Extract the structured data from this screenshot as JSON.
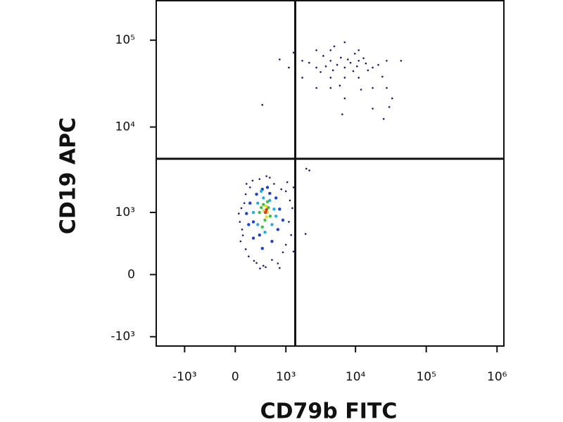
{
  "chart_data": {
    "type": "scatter",
    "x_label": "CD79b FITC",
    "y_label": "CD19 APC",
    "scale": "biexponential",
    "xlim": [
      -2600,
      1250000
    ],
    "ylim": [
      -1300,
      285000
    ],
    "xticks": [
      {
        "value": -1000,
        "label": "-10³"
      },
      0,
      {
        "value": 1000,
        "label": "10³"
      },
      {
        "value": 10000,
        "label": "10⁴"
      },
      {
        "value": 100000,
        "label": "10⁵"
      },
      {
        "value": 1000000,
        "label": "10⁶"
      }
    ],
    "yticks": [
      {
        "value": -1000,
        "label": "-10³"
      },
      0,
      {
        "value": 1000,
        "label": "10³"
      },
      {
        "value": 10000,
        "label": "10⁴"
      },
      {
        "value": 100000,
        "label": "10⁵"
      }
    ],
    "quadrant_gate": {
      "x": 1380,
      "y": 4300
    },
    "series": [
      {
        "color": "#1a1a6e",
        "x": [
          1750,
          2790,
          4440,
          7040,
          11100,
          4440,
          2790,
          7040,
          11100,
          17500,
          27600,
          17500,
          4440,
          2790,
          1750,
          1110,
          7040,
          11100,
          27600,
          44000,
          17500,
          7040,
          4440,
          5500,
          6200,
          8500,
          9300,
          3500,
          3200,
          13000,
          15000,
          21000,
          24000,
          2200,
          5000,
          9800,
          6000,
          12000,
          30000,
          33000,
          25000,
          6500,
          1300,
          800,
          400,
          3800,
          4800,
          7800,
          10500,
          14000
        ],
        "values": [
          58000,
          48400,
          58000,
          48400,
          58000,
          76700,
          76700,
          37000,
          37000,
          48400,
          58000,
          28200,
          37000,
          28200,
          37000,
          48400,
          94600,
          76700,
          28200,
          58000,
          16300,
          21400,
          28200,
          52000,
          63000,
          55000,
          44000,
          66000,
          43000,
          62000,
          45000,
          52000,
          38000,
          55000,
          85000,
          70000,
          30000,
          27000,
          17000,
          21400,
          12400,
          14000,
          72000,
          60000,
          18000,
          50000,
          45000,
          60000,
          50000,
          54000
        ]
      },
      {
        "color": "#1a1a6e",
        "x": [
          46,
          60,
          80,
          100,
          139,
          139,
          200,
          238,
          300,
          358,
          464,
          550,
          650,
          750,
          850,
          1000,
          1110,
          1250,
          1150,
          1000,
          90,
          120,
          180,
          260,
          420,
          600,
          900,
          1200,
          70,
          150,
          350,
          1050,
          1300,
          800,
          480,
          2210,
          2000,
          1300,
          1950
        ],
        "values": [
          970,
          760,
          1130,
          495,
          1660,
          290,
          2000,
          2400,
          125,
          65,
          80,
          2600,
          2200,
          120,
          1900,
          350,
          760,
          1130,
          1400,
          1800,
          600,
          1300,
          200,
          150,
          95,
          160,
          250,
          500,
          400,
          2200,
          2500,
          2300,
          260,
          70,
          2700,
          3150,
          3300,
          2000,
          520
        ]
      },
      {
        "color": "#2040d0",
        "x": [
          150,
          200,
          250,
          300,
          400,
          550,
          700,
          800,
          750,
          600,
          400,
          250,
          180,
          900,
          500,
          350
        ],
        "values": [
          970,
          1300,
          760,
          1660,
          1900,
          1700,
          1500,
          1100,
          600,
          400,
          300,
          450,
          700,
          800,
          2000,
          500
        ]
      },
      {
        "color": "#20b0e0",
        "x": [
          250,
          320,
          420,
          550,
          650,
          600,
          450,
          320,
          700,
          380
        ],
        "values": [
          1000,
          1300,
          1500,
          1400,
          1100,
          700,
          550,
          700,
          900,
          1800
        ]
      },
      {
        "color": "#40c040",
        "x": [
          350,
          420,
          520,
          560,
          450,
          400,
          500,
          380
        ],
        "values": [
          1000,
          1250,
          1150,
          900,
          800,
          650,
          1350,
          1150
        ]
      },
      {
        "color": "#e0e020",
        "x": [
          430,
          500,
          470,
          480
        ],
        "values": [
          1050,
          1000,
          1200,
          880
        ]
      },
      {
        "color": "#e03020",
        "x": [
          460,
          480
        ],
        "values": [
          1000,
          1080
        ]
      }
    ]
  }
}
